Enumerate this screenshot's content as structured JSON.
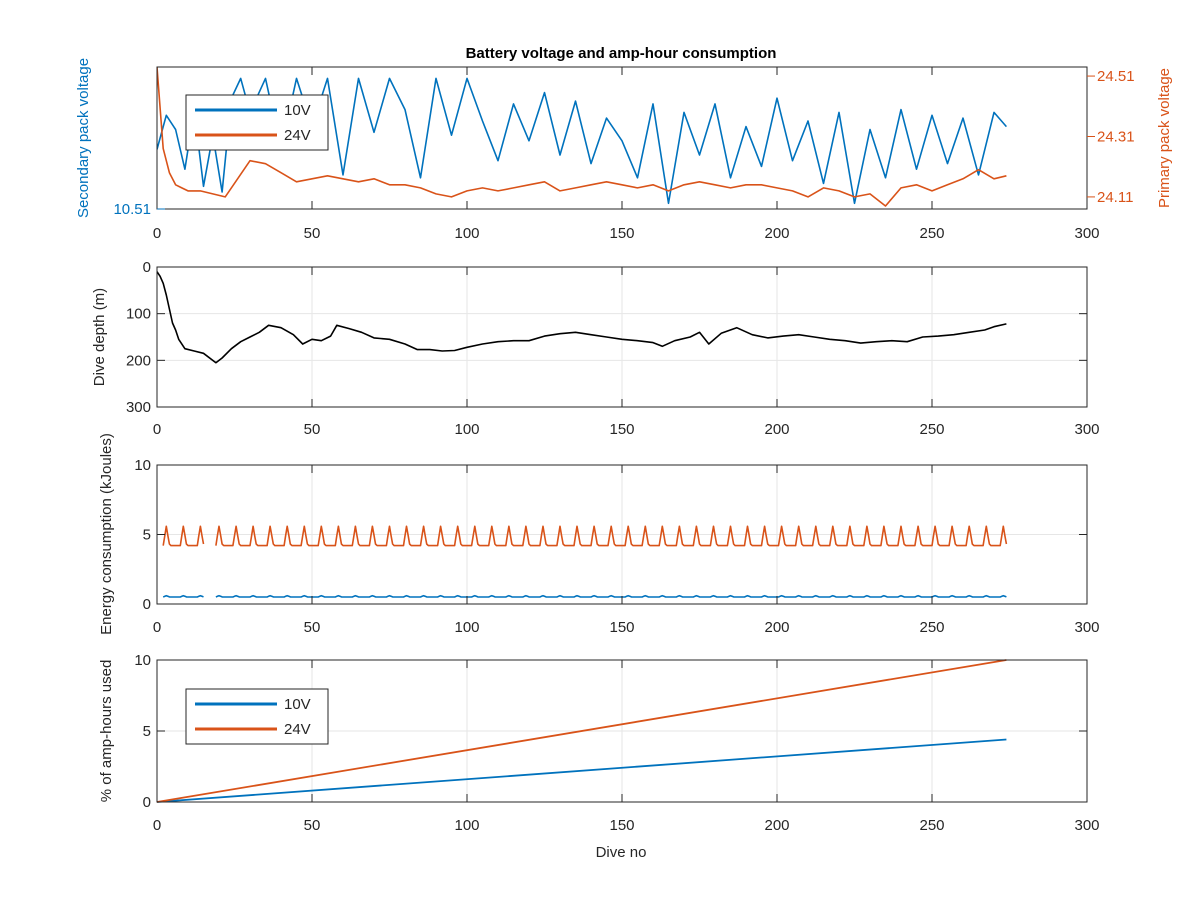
{
  "figure": {
    "title": "Battery voltage and amp-hour consumption"
  },
  "colors": {
    "v10": "#0072BD",
    "v24": "#D95319",
    "depth": "#000000",
    "axis": "#262626",
    "grid": "#e6e6e6"
  },
  "chart_data": [
    {
      "type": "line",
      "title": "Battery voltage and amp-hour consumption",
      "xlabel": "",
      "ylabel": "Secondary pack voltage",
      "ylabel_right": "Primary pack voltage",
      "xlim": [
        0,
        300
      ],
      "xticks": [
        "0",
        "50",
        "100",
        "150",
        "200",
        "250",
        "300"
      ],
      "yticks_left": [
        "10.51"
      ],
      "yticks_right": [
        "24.11",
        "24.31",
        "24.51"
      ],
      "ylim_left": [
        10.51,
        10.56
      ],
      "ylim_right": [
        24.07,
        24.54
      ],
      "grid": false,
      "legend": {
        "position": "top-left",
        "entries": [
          "10V",
          "24V"
        ]
      },
      "series": [
        {
          "name": "10V",
          "axis": "left",
          "x": [
            0,
            3,
            6,
            9,
            12,
            15,
            18,
            21,
            24,
            27,
            30,
            35,
            40,
            45,
            50,
            55,
            60,
            65,
            70,
            75,
            80,
            85,
            90,
            95,
            100,
            105,
            110,
            115,
            120,
            125,
            130,
            135,
            140,
            145,
            150,
            155,
            160,
            165,
            170,
            175,
            180,
            185,
            190,
            195,
            200,
            205,
            210,
            215,
            220,
            225,
            230,
            235,
            240,
            245,
            250,
            255,
            260,
            265,
            270,
            274
          ],
          "y": [
            10.531,
            10.543,
            10.538,
            10.524,
            10.545,
            10.518,
            10.536,
            10.516,
            10.549,
            10.556,
            10.544,
            10.556,
            10.531,
            10.556,
            10.539,
            10.556,
            10.522,
            10.556,
            10.537,
            10.556,
            10.545,
            10.521,
            10.556,
            10.536,
            10.556,
            10.541,
            10.527,
            10.547,
            10.534,
            10.551,
            10.529,
            10.548,
            10.526,
            10.542,
            10.534,
            10.521,
            10.547,
            10.512,
            10.544,
            10.529,
            10.547,
            10.521,
            10.539,
            10.525,
            10.549,
            10.527,
            10.541,
            10.519,
            10.544,
            10.512,
            10.538,
            10.521,
            10.545,
            10.524,
            10.543,
            10.526,
            10.542,
            10.522,
            10.544,
            10.539
          ]
        },
        {
          "name": "24V",
          "axis": "right",
          "x": [
            0,
            2,
            4,
            6,
            8,
            10,
            14,
            18,
            22,
            26,
            30,
            35,
            40,
            45,
            50,
            55,
            60,
            65,
            70,
            75,
            80,
            85,
            90,
            95,
            100,
            105,
            110,
            115,
            120,
            125,
            130,
            135,
            140,
            145,
            150,
            155,
            160,
            165,
            170,
            175,
            180,
            185,
            190,
            195,
            200,
            205,
            210,
            215,
            220,
            225,
            230,
            235,
            240,
            245,
            250,
            255,
            260,
            265,
            270,
            274
          ],
          "y": [
            24.54,
            24.27,
            24.19,
            24.15,
            24.14,
            24.13,
            24.13,
            24.12,
            24.11,
            24.17,
            24.23,
            24.22,
            24.19,
            24.16,
            24.17,
            24.18,
            24.17,
            24.16,
            24.17,
            24.15,
            24.15,
            24.14,
            24.12,
            24.11,
            24.13,
            24.14,
            24.13,
            24.14,
            24.15,
            24.16,
            24.13,
            24.14,
            24.15,
            24.16,
            24.15,
            24.14,
            24.15,
            24.13,
            24.15,
            24.16,
            24.15,
            24.14,
            24.15,
            24.15,
            24.14,
            24.13,
            24.11,
            24.14,
            24.13,
            24.11,
            24.12,
            24.08,
            24.14,
            24.15,
            24.13,
            24.15,
            24.17,
            24.2,
            24.17,
            24.18
          ]
        }
      ]
    },
    {
      "type": "line",
      "xlabel": "",
      "ylabel": "Dive depth (m)",
      "xlim": [
        0,
        300
      ],
      "ylim": [
        0,
        300
      ],
      "y_reversed": true,
      "xticks": [
        "0",
        "50",
        "100",
        "150",
        "200",
        "250",
        "300"
      ],
      "yticks": [
        "0",
        "100",
        "200",
        "300"
      ],
      "grid": true,
      "series": [
        {
          "x": [
            0,
            1,
            2,
            3,
            4,
            5,
            6,
            7,
            9,
            12,
            15,
            19,
            21,
            24,
            27,
            30,
            33,
            36,
            40,
            44,
            47,
            50,
            53,
            56,
            58,
            62,
            66,
            70,
            75,
            80,
            84,
            88,
            92,
            96,
            100,
            105,
            110,
            115,
            120,
            125,
            130,
            135,
            140,
            145,
            150,
            155,
            160,
            163,
            167,
            172,
            175,
            178,
            182,
            187,
            192,
            197,
            202,
            207,
            212,
            217,
            222,
            227,
            232,
            237,
            242,
            247,
            252,
            257,
            262,
            267,
            270,
            274
          ],
          "y": [
            10,
            20,
            35,
            60,
            90,
            120,
            135,
            155,
            175,
            180,
            185,
            205,
            195,
            175,
            160,
            150,
            140,
            125,
            130,
            145,
            165,
            155,
            158,
            148,
            125,
            132,
            140,
            152,
            155,
            165,
            177,
            177,
            180,
            179,
            172,
            165,
            160,
            158,
            158,
            148,
            143,
            140,
            145,
            150,
            155,
            158,
            162,
            170,
            158,
            150,
            140,
            165,
            142,
            130,
            145,
            152,
            148,
            145,
            150,
            155,
            158,
            163,
            160,
            158,
            160,
            150,
            148,
            145,
            140,
            135,
            128,
            122
          ]
        }
      ]
    },
    {
      "type": "line",
      "xlabel": "",
      "ylabel": "Energy consumption (kJoules)",
      "xlim": [
        0,
        300
      ],
      "ylim": [
        0,
        10
      ],
      "xticks": [
        "0",
        "50",
        "100",
        "150",
        "200",
        "250",
        "300"
      ],
      "yticks": [
        "0",
        "5",
        "10"
      ],
      "grid": true,
      "series": [
        {
          "name": "10V",
          "x_start": 2,
          "x_end": 274,
          "gap": [
            15,
            19
          ],
          "baseline": 0.5,
          "peak": 0.6
        },
        {
          "name": "24V",
          "x_start": 2,
          "x_end": 274,
          "gap": [
            15,
            19
          ],
          "baseline": 4.2,
          "peak": 5.6
        }
      ]
    },
    {
      "type": "line",
      "xlabel": "Dive no",
      "ylabel": "% of amp-hours used",
      "xlim": [
        0,
        300
      ],
      "ylim": [
        0,
        10
      ],
      "xticks": [
        "0",
        "50",
        "100",
        "150",
        "200",
        "250",
        "300"
      ],
      "yticks": [
        "0",
        "5",
        "10"
      ],
      "grid": true,
      "legend": {
        "position": "top-left",
        "entries": [
          "10V",
          "24V"
        ]
      },
      "series": [
        {
          "name": "10V",
          "x": [
            0,
            274
          ],
          "y": [
            0,
            4.4
          ]
        },
        {
          "name": "24V",
          "x": [
            0,
            274
          ],
          "y": [
            0,
            10.0
          ]
        }
      ]
    }
  ]
}
